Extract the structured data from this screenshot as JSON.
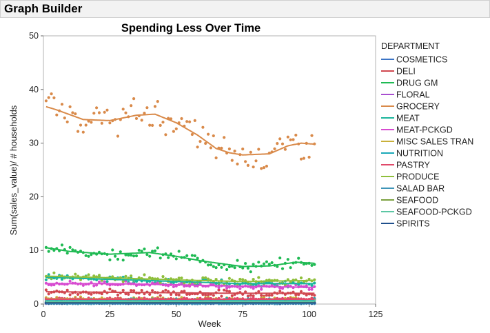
{
  "window": {
    "title": "Graph Builder"
  },
  "chart_data": {
    "type": "scatter",
    "title": "Spending Less Over Time",
    "xlabel": "Week",
    "ylabel": "Sum(sales_value)/ # households",
    "xlim": [
      0,
      125
    ],
    "ylim": [
      0,
      50
    ],
    "xticks": [
      0,
      25,
      50,
      75,
      100,
      125
    ],
    "yticks": [
      0,
      10,
      20,
      30,
      40,
      50
    ],
    "legend_title": "DEPARTMENT",
    "legend_position": "right",
    "grid": false,
    "smoother": true,
    "series": [
      {
        "name": "COSMETICS",
        "color": "#3b74c5",
        "smooth": [
          [
            1,
            0.3
          ],
          [
            25,
            0.3
          ],
          [
            50,
            0.3
          ],
          [
            75,
            0.3
          ],
          [
            102,
            0.3
          ]
        ],
        "spread": 0.2
      },
      {
        "name": "DELI",
        "color": "#d0474f",
        "smooth": [
          [
            1,
            2.3
          ],
          [
            25,
            2.2
          ],
          [
            50,
            2.1
          ],
          [
            75,
            2.0
          ],
          [
            102,
            2.0
          ]
        ],
        "spread": 0.5
      },
      {
        "name": "DRUG GM",
        "color": "#1fba53",
        "smooth": [
          [
            1,
            10.5
          ],
          [
            10,
            9.8
          ],
          [
            25,
            9.3
          ],
          [
            40,
            9.6
          ],
          [
            50,
            8.9
          ],
          [
            60,
            8.0
          ],
          [
            75,
            7.0
          ],
          [
            85,
            7.1
          ],
          [
            95,
            7.8
          ],
          [
            102,
            7.6
          ]
        ],
        "spread": 0.9
      },
      {
        "name": "FLORAL",
        "color": "#a84fd0",
        "smooth": [
          [
            1,
            0.2
          ],
          [
            50,
            0.2
          ],
          [
            102,
            0.2
          ]
        ],
        "spread": 0.1
      },
      {
        "name": "GROCERY",
        "color": "#d98a4a",
        "smooth": [
          [
            1,
            36.8
          ],
          [
            5,
            36.2
          ],
          [
            15,
            34.4
          ],
          [
            25,
            34.2
          ],
          [
            35,
            35.2
          ],
          [
            42,
            35.4
          ],
          [
            50,
            33.8
          ],
          [
            58,
            31.5
          ],
          [
            65,
            29.0
          ],
          [
            70,
            28.2
          ],
          [
            75,
            27.8
          ],
          [
            85,
            28.0
          ],
          [
            92,
            29.5
          ],
          [
            97,
            30.0
          ],
          [
            102,
            29.8
          ]
        ],
        "spread": 2.6
      },
      {
        "name": "MEAT",
        "color": "#1bb59c",
        "smooth": [
          [
            1,
            5.0
          ],
          [
            25,
            4.6
          ],
          [
            50,
            4.2
          ],
          [
            75,
            3.8
          ],
          [
            102,
            3.8
          ]
        ],
        "spread": 0.5
      },
      {
        "name": "MEAT-PCKGD",
        "color": "#d74bd0",
        "smooth": [
          [
            1,
            3.8
          ],
          [
            25,
            3.8
          ],
          [
            50,
            3.6
          ],
          [
            75,
            3.3
          ],
          [
            102,
            3.1
          ]
        ],
        "spread": 0.4
      },
      {
        "name": "MISC SALES TRAN",
        "color": "#c9b03a",
        "smooth": [
          [
            1,
            1.0
          ],
          [
            50,
            0.9
          ],
          [
            102,
            0.9
          ]
        ],
        "spread": 0.3
      },
      {
        "name": "NUTRITION",
        "color": "#1aa8b8",
        "smooth": [
          [
            1,
            0.8
          ],
          [
            50,
            0.8
          ],
          [
            102,
            0.8
          ]
        ],
        "spread": 0.2
      },
      {
        "name": "PASTRY",
        "color": "#e04a6a",
        "smooth": [
          [
            1,
            0.9
          ],
          [
            50,
            0.9
          ],
          [
            102,
            0.9
          ]
        ],
        "spread": 0.2
      },
      {
        "name": "PRODUCE",
        "color": "#8fbf3c",
        "smooth": [
          [
            1,
            5.2
          ],
          [
            25,
            4.9
          ],
          [
            50,
            4.5
          ],
          [
            75,
            4.2
          ],
          [
            102,
            4.4
          ]
        ],
        "spread": 0.6
      },
      {
        "name": "SALAD BAR",
        "color": "#3f95b8",
        "smooth": [
          [
            1,
            0.1
          ],
          [
            102,
            0.1
          ]
        ],
        "spread": 0.05
      },
      {
        "name": "SEAFOOD",
        "color": "#7aa03e",
        "smooth": [
          [
            1,
            0.4
          ],
          [
            102,
            0.4
          ]
        ],
        "spread": 0.15
      },
      {
        "name": "SEAFOOD-PCKGD",
        "color": "#5cc7a4",
        "smooth": [
          [
            1,
            0.5
          ],
          [
            102,
            0.5
          ]
        ],
        "spread": 0.15
      },
      {
        "name": "SPIRITS",
        "color": "#1f4f8c",
        "smooth": [
          [
            1,
            0.2
          ],
          [
            102,
            0.2
          ]
        ],
        "spread": 0.08
      }
    ]
  }
}
